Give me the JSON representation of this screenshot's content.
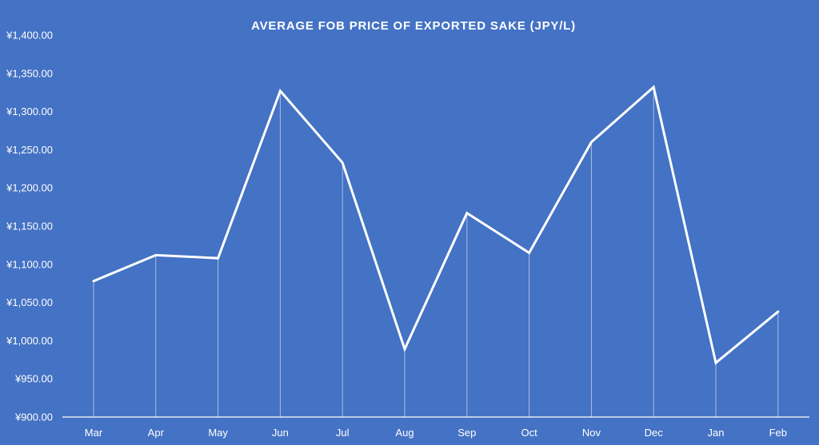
{
  "chart_data": {
    "type": "line",
    "title": "AVERAGE FOB PRICE OF EXPORTED SAKE  (JPY/L)",
    "xlabel": "",
    "ylabel": "",
    "categories": [
      "Mar",
      "Apr",
      "May",
      "Jun",
      "Jul",
      "Aug",
      "Sep",
      "Oct",
      "Nov",
      "Dec",
      "Jan",
      "Feb"
    ],
    "series": [
      {
        "values": [
          1078,
          1112,
          1108,
          1327,
          1233,
          989,
          1167,
          1115,
          1260,
          1332,
          971,
          1038
        ]
      }
    ],
    "ylim": [
      900,
      1400
    ],
    "yticks": [
      900,
      950,
      1000,
      1050,
      1100,
      1150,
      1200,
      1250,
      1300,
      1350,
      1400
    ],
    "ytick_labels": [
      "¥900.00",
      "¥950.00",
      "¥1,000.00",
      "¥1,050.00",
      "¥1,100.00",
      "¥1,150.00",
      "¥1,200.00",
      "¥1,250.00",
      "¥1,300.00",
      "¥1,350.00",
      "¥1,400.00"
    ],
    "grid": false,
    "drop_lines": true,
    "legend": "none",
    "colors": {
      "background": "#4472C4",
      "line": "#FFFFFF",
      "text": "#FFFFFF",
      "axis": "#FFFFFF"
    }
  }
}
